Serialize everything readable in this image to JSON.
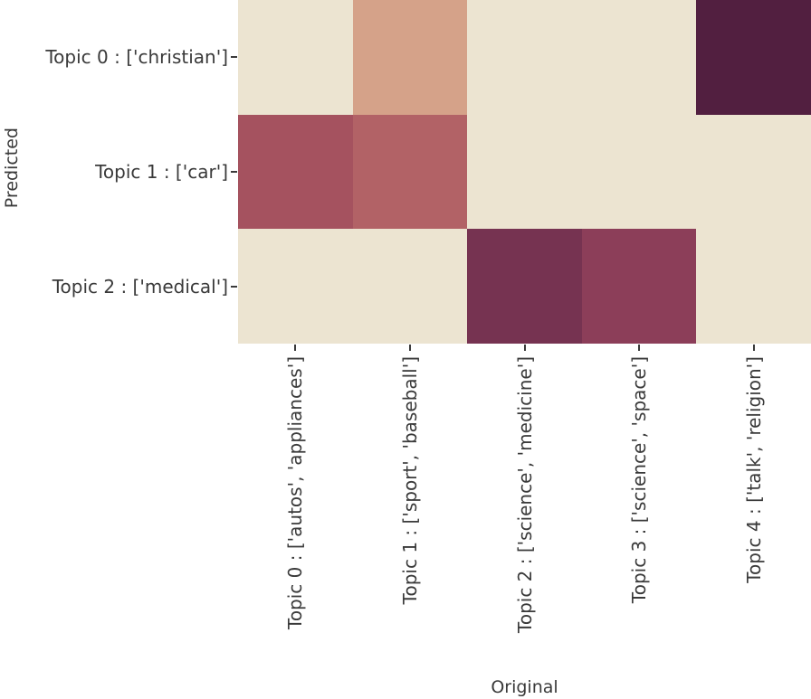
{
  "figure": {
    "background_color": "#ffffff",
    "text_color": "#3a3a3a",
    "tick_color": "#3a3a3a"
  },
  "chart_data": {
    "type": "heatmap",
    "title": "",
    "xlabel": "Original",
    "ylabel": "Predicted",
    "x_categories": [
      "Topic 0 : ['autos', 'appliances']",
      "Topic 1 : ['sport', 'baseball']",
      "Topic 2 : ['science', 'medicine']",
      "Topic 3 : ['science', 'space']",
      "Topic 4 : ['talk', 'religion']"
    ],
    "y_categories": [
      "Topic 0 : ['christian']",
      "Topic 1 : ['car']",
      "Topic 2 : ['medical']"
    ],
    "cell_colors": [
      [
        "#ece4d1",
        "#d5a289",
        "#ece4d1",
        "#ece4d1",
        "#521f40"
      ],
      [
        "#a5525f",
        "#b26266",
        "#ece4d1",
        "#ece4d1",
        "#ece4d1"
      ],
      [
        "#ece4d1",
        "#ece4d1",
        "#763351",
        "#8c3e59",
        "#ece4d1"
      ]
    ],
    "values_norm_estimated": [
      [
        0.02,
        0.33,
        0.02,
        0.02,
        1.0
      ],
      [
        0.52,
        0.45,
        0.02,
        0.02,
        0.02
      ],
      [
        0.02,
        0.02,
        0.78,
        0.62,
        0.02
      ]
    ],
    "colormap_low": "#ece4d1",
    "colormap_high": "#521f40",
    "legend": "none",
    "grid": false,
    "xlim_categories": 5,
    "ylim_categories": 3
  }
}
